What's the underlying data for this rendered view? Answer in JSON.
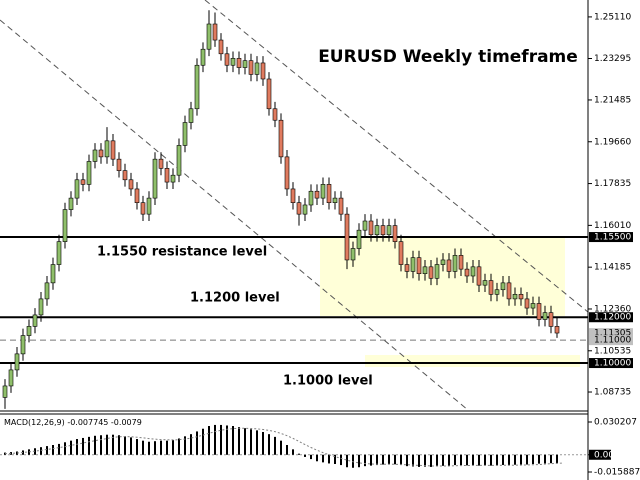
{
  "chart_data": [
    {
      "type": "candlestick",
      "title": "EURUSD Weekly timeframe",
      "annotations": [
        "1.1550 resistance level",
        "1.1200 level",
        "1.1000 level"
      ],
      "up_color": "#8fbf6a",
      "down_color": "#e07b5f",
      "ylim": [
        1.0795,
        1.2563
      ],
      "yticks": [
        {
          "value": 1.2511,
          "label": "1.25110"
        },
        {
          "value": 1.23295,
          "label": "1.23295"
        },
        {
          "value": 1.21485,
          "label": "1.21485"
        },
        {
          "value": 1.1966,
          "label": "1.19660"
        },
        {
          "value": 1.17835,
          "label": "1.17835"
        },
        {
          "value": 1.1601,
          "label": "1.16010"
        },
        {
          "value": 1.14185,
          "label": "1.14185"
        },
        {
          "value": 1.1236,
          "label": "1.12360"
        },
        {
          "value": 1.10535,
          "label": "1.10535"
        },
        {
          "value": 1.08735,
          "label": "1.08735"
        }
      ],
      "hlines": [
        {
          "value": 1.155,
          "label": "1.15500",
          "style": "solid"
        },
        {
          "value": 1.12,
          "label": "1.12000",
          "style": "solid"
        },
        {
          "value": 1.11305,
          "label": "1.11305",
          "style": "price"
        },
        {
          "value": 1.11,
          "label": "1.11000",
          "style": "dashed"
        },
        {
          "value": 1.1,
          "label": "1.10000",
          "style": "solid"
        }
      ],
      "open": [
        1.085,
        1.09,
        1.097,
        1.104,
        1.112,
        1.116,
        1.121,
        1.128,
        1.135,
        1.143,
        1.153,
        1.167,
        1.172,
        1.18,
        1.178,
        1.188,
        1.193,
        1.19,
        1.197,
        1.189,
        1.184,
        1.18,
        1.176,
        1.17,
        1.165,
        1.172,
        1.189,
        1.185,
        1.179,
        1.182,
        1.195,
        1.205,
        1.211,
        1.23,
        1.237,
        1.248,
        1.241,
        1.235,
        1.23,
        1.233,
        1.229,
        1.232,
        1.226,
        1.231,
        1.224,
        1.211,
        1.206,
        1.19,
        1.176,
        1.17,
        1.165,
        1.169,
        1.175,
        1.172,
        1.178,
        1.17,
        1.172,
        1.165,
        1.145,
        1.15,
        1.158,
        1.162,
        1.156,
        1.16,
        1.156,
        1.16,
        1.153,
        1.143,
        1.14,
        1.146,
        1.139,
        1.142,
        1.137,
        1.143,
        1.145,
        1.14,
        1.147,
        1.141,
        1.138,
        1.142,
        1.134,
        1.136,
        1.13,
        1.132,
        1.135,
        1.128,
        1.13,
        1.128,
        1.124,
        1.126,
        1.119,
        1.122,
        1.116
      ],
      "high": [
        1.093,
        1.1,
        1.107,
        1.115,
        1.119,
        1.124,
        1.131,
        1.138,
        1.146,
        1.156,
        1.17,
        1.175,
        1.183,
        1.183,
        1.191,
        1.196,
        1.196,
        1.203,
        1.2,
        1.192,
        1.187,
        1.183,
        1.179,
        1.173,
        1.175,
        1.192,
        1.192,
        1.188,
        1.185,
        1.198,
        1.208,
        1.214,
        1.233,
        1.24,
        1.254,
        1.253,
        1.244,
        1.238,
        1.236,
        1.236,
        1.235,
        1.235,
        1.234,
        1.234,
        1.227,
        1.214,
        1.209,
        1.193,
        1.179,
        1.173,
        1.172,
        1.178,
        1.178,
        1.181,
        1.181,
        1.175,
        1.175,
        1.168,
        1.153,
        1.161,
        1.165,
        1.165,
        1.163,
        1.163,
        1.163,
        1.163,
        1.156,
        1.146,
        1.149,
        1.149,
        1.145,
        1.145,
        1.146,
        1.148,
        1.148,
        1.15,
        1.15,
        1.144,
        1.145,
        1.145,
        1.139,
        1.139,
        1.135,
        1.138,
        1.138,
        1.133,
        1.133,
        1.131,
        1.129,
        1.129,
        1.125,
        1.125,
        1.12
      ],
      "low": [
        1.08,
        1.087,
        1.094,
        1.101,
        1.109,
        1.113,
        1.118,
        1.125,
        1.132,
        1.14,
        1.15,
        1.164,
        1.169,
        1.175,
        1.175,
        1.185,
        1.187,
        1.187,
        1.186,
        1.181,
        1.177,
        1.173,
        1.167,
        1.162,
        1.162,
        1.169,
        1.182,
        1.176,
        1.176,
        1.179,
        1.192,
        1.202,
        1.208,
        1.227,
        1.234,
        1.238,
        1.232,
        1.227,
        1.227,
        1.226,
        1.226,
        1.223,
        1.223,
        1.221,
        1.208,
        1.203,
        1.187,
        1.173,
        1.167,
        1.16,
        1.162,
        1.166,
        1.169,
        1.169,
        1.167,
        1.167,
        1.162,
        1.141,
        1.142,
        1.147,
        1.155,
        1.153,
        1.153,
        1.153,
        1.153,
        1.15,
        1.14,
        1.137,
        1.137,
        1.136,
        1.136,
        1.134,
        1.134,
        1.14,
        1.137,
        1.137,
        1.138,
        1.135,
        1.135,
        1.131,
        1.131,
        1.127,
        1.127,
        1.129,
        1.125,
        1.125,
        1.125,
        1.121,
        1.121,
        1.116,
        1.116,
        1.113,
        1.111
      ],
      "close": [
        1.09,
        1.097,
        1.104,
        1.112,
        1.116,
        1.121,
        1.128,
        1.135,
        1.143,
        1.153,
        1.167,
        1.172,
        1.18,
        1.178,
        1.188,
        1.193,
        1.19,
        1.197,
        1.189,
        1.184,
        1.18,
        1.176,
        1.17,
        1.165,
        1.172,
        1.189,
        1.185,
        1.179,
        1.182,
        1.195,
        1.205,
        1.211,
        1.23,
        1.237,
        1.248,
        1.241,
        1.235,
        1.23,
        1.233,
        1.229,
        1.232,
        1.226,
        1.231,
        1.224,
        1.211,
        1.206,
        1.19,
        1.176,
        1.17,
        1.165,
        1.169,
        1.175,
        1.172,
        1.178,
        1.17,
        1.172,
        1.165,
        1.145,
        1.15,
        1.158,
        1.162,
        1.156,
        1.16,
        1.156,
        1.16,
        1.153,
        1.143,
        1.14,
        1.146,
        1.139,
        1.142,
        1.137,
        1.143,
        1.145,
        1.14,
        1.147,
        1.141,
        1.138,
        1.142,
        1.134,
        1.136,
        1.13,
        1.132,
        1.135,
        1.128,
        1.13,
        1.128,
        1.124,
        1.126,
        1.119,
        1.122,
        1.116,
        1.1131
      ]
    },
    {
      "type": "macd",
      "label": "MACD(12,26,9)",
      "color": "#000000",
      "signal_color": "#808080",
      "ylim": [
        -0.015887,
        0.030207
      ],
      "yticks": [
        0.030207,
        {
          "value": 0,
          "label": "0.00"
        },
        -0.015887
      ],
      "values": [
        0.002,
        0.0025,
        0.003,
        0.004,
        0.005,
        0.006,
        0.007,
        0.008,
        0.009,
        0.01,
        0.0115,
        0.013,
        0.0145,
        0.0155,
        0.0165,
        0.0175,
        0.018,
        0.0185,
        0.0185,
        0.018,
        0.017,
        0.016,
        0.0145,
        0.013,
        0.012,
        0.0125,
        0.013,
        0.013,
        0.0135,
        0.015,
        0.017,
        0.019,
        0.0215,
        0.024,
        0.0265,
        0.0275,
        0.0275,
        0.027,
        0.0265,
        0.0255,
        0.0245,
        0.0235,
        0.0225,
        0.021,
        0.019,
        0.0165,
        0.013,
        0.009,
        0.005,
        0.001,
        -0.002,
        -0.004,
        -0.006,
        -0.007,
        -0.008,
        -0.0085,
        -0.0095,
        -0.0115,
        -0.012,
        -0.0115,
        -0.0105,
        -0.01,
        -0.0095,
        -0.009,
        -0.0085,
        -0.0088,
        -0.0095,
        -0.0105,
        -0.0108,
        -0.0112,
        -0.011,
        -0.0112,
        -0.0108,
        -0.0102,
        -0.01,
        -0.0095,
        -0.0095,
        -0.0098,
        -0.0096,
        -0.01,
        -0.0098,
        -0.01,
        -0.0098,
        -0.0094,
        -0.0096,
        -0.0092,
        -0.009,
        -0.009,
        -0.0085,
        -0.0082,
        -0.008,
        -0.0078,
        -0.007745
      ],
      "signal": [
        0.001,
        0.0013,
        0.0016,
        0.0021,
        0.0027,
        0.0034,
        0.0041,
        0.0049,
        0.0057,
        0.0066,
        0.0075,
        0.0086,
        0.0097,
        0.0108,
        0.012,
        0.013,
        0.014,
        0.015,
        0.016,
        0.0166,
        0.0168,
        0.0166,
        0.0162,
        0.0156,
        0.0149,
        0.0144,
        0.014,
        0.0138,
        0.0137,
        0.0139,
        0.0145,
        0.0154,
        0.0166,
        0.0181,
        0.0198,
        0.0213,
        0.0226,
        0.0235,
        0.0241,
        0.0244,
        0.0244,
        0.0242,
        0.0239,
        0.0233,
        0.0225,
        0.0213,
        0.0197,
        0.0176,
        0.0151,
        0.0123,
        0.0094,
        0.0067,
        0.0042,
        0.002,
        0.0,
        -0.0017,
        -0.0033,
        -0.005,
        -0.0064,
        -0.0075,
        -0.0081,
        -0.0085,
        -0.0087,
        -0.0088,
        -0.0088,
        -0.0088,
        -0.0089,
        -0.0092,
        -0.0095,
        -0.0098,
        -0.01,
        -0.0103,
        -0.0104,
        -0.0104,
        -0.0103,
        -0.0101,
        -0.01,
        -0.0099,
        -0.0098,
        -0.0098,
        -0.0098,
        -0.0098,
        -0.0098,
        -0.0097,
        -0.0097,
        -0.0096,
        -0.0095,
        -0.0094,
        -0.0092,
        -0.009,
        -0.0086,
        -0.0082,
        -0.0079,
        -0.007612
      ]
    }
  ]
}
